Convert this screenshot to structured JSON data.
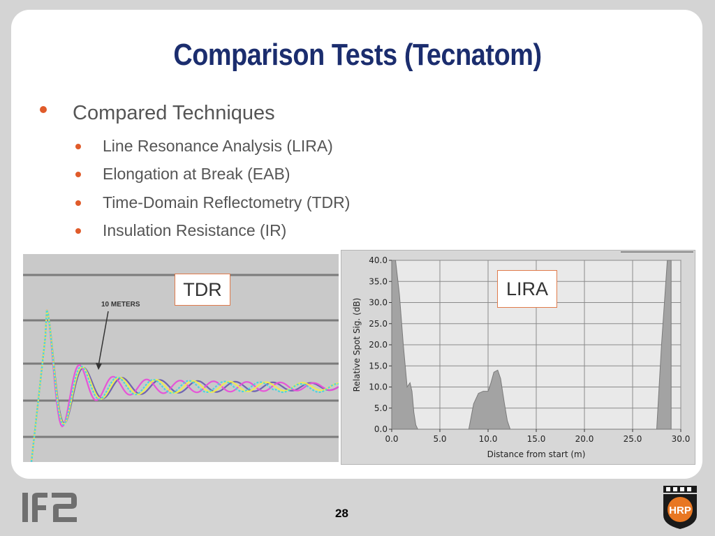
{
  "title": "Comparison Tests (Tecnatom)",
  "bullets": {
    "level1": "Compared Techniques",
    "level2": [
      "Line Resonance Analysis (LIRA)",
      "Elongation at Break (EAB)",
      "Time-Domain Reflectometry (TDR)",
      "Insulation Resistance (IR)"
    ]
  },
  "tdr_panel": {
    "label": "TDR",
    "annotation": "10 METERS",
    "trace_colors": [
      "#6a5fb0",
      "#e84fd8",
      "#f2ee4a",
      "#43d6e0"
    ]
  },
  "lira_panel": {
    "label": "LIRA",
    "chart_data": {
      "type": "area",
      "xlabel": "Distance from start (m)",
      "ylabel": "Relative Spot Sig. (dB)",
      "xlim": [
        0,
        30
      ],
      "ylim": [
        0,
        40
      ],
      "x_ticks": [
        "0.0",
        "5.0",
        "10.0",
        "15.0",
        "20.0",
        "25.0",
        "30.0"
      ],
      "y_ticks": [
        "40.0",
        "35.0",
        "30.0",
        "25.0",
        "20.0",
        "15.0",
        "10.0",
        "5.0",
        "0.0"
      ],
      "grid": true,
      "series": [
        {
          "x": [
            0,
            0.4,
            0.8,
            1.2,
            1.6,
            1.9,
            2.1,
            2.3,
            2.5,
            2.7,
            8.0,
            8.5,
            9.0,
            9.5,
            10.0,
            10.3,
            10.6,
            11.0,
            11.3,
            11.7,
            12.0,
            12.3,
            27.5,
            28.0,
            28.6,
            29.0
          ],
          "y": [
            40,
            40,
            32,
            20,
            10,
            11,
            9,
            4,
            1,
            0,
            0,
            6,
            8.5,
            9,
            9,
            11,
            13.5,
            14,
            12,
            6,
            2,
            0,
            0,
            20,
            40,
            40
          ]
        }
      ]
    }
  },
  "footer": {
    "page_number": "28",
    "left_logo_text": "IFE",
    "right_logo_text": "HRP"
  }
}
